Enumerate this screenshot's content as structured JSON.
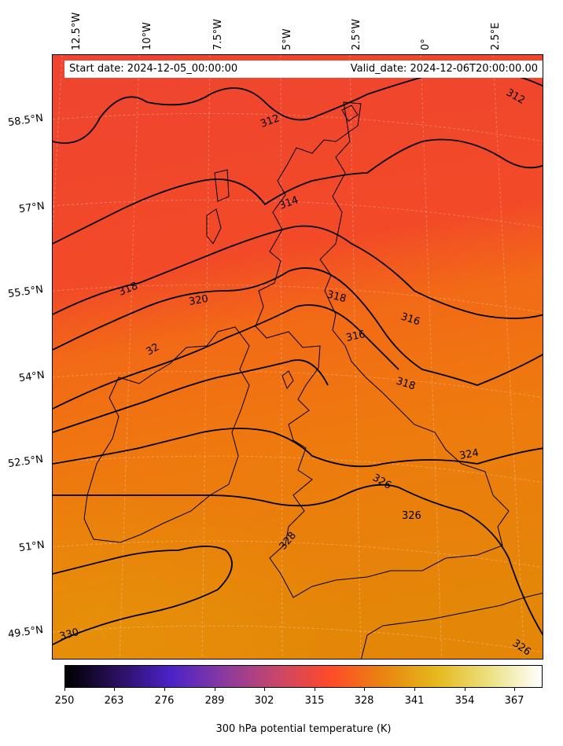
{
  "info": {
    "start_date": "Start date: 2024-12-05_00:00:00",
    "valid_date": "Valid_date: 2024-12-06T20:00:00.00"
  },
  "longitude_labels": [
    "12.5°W",
    "10°W",
    "7.5°W",
    "5°W",
    "2.5°W",
    "0°",
    "2.5°E"
  ],
  "latitude_labels": [
    "58.5°N",
    "57°N",
    "55.5°N",
    "54°N",
    "52.5°N",
    "51°N",
    "49.5°N"
  ],
  "contour_labels": [
    "312",
    "312",
    "314",
    "318",
    "320",
    "318",
    "316",
    "316",
    "318",
    "32",
    "324",
    "326",
    "326",
    "328",
    "330",
    "326"
  ],
  "colorbar": {
    "ticks": [
      "250",
      "263",
      "276",
      "289",
      "302",
      "315",
      "328",
      "341",
      "354",
      "367"
    ],
    "label": "300 hPa potential temperature (K)",
    "colors": [
      "#000000",
      "#2a1060",
      "#4b22c8",
      "#8a3aa0",
      "#c8466a",
      "#ff4a2a",
      "#e88410",
      "#e6b81c",
      "#ece080",
      "#ffffff"
    ]
  },
  "field_colors": {
    "north": "#f04a2e",
    "mid": "#f06f14",
    "south": "#e48608"
  },
  "coastline_color": "#000000"
}
